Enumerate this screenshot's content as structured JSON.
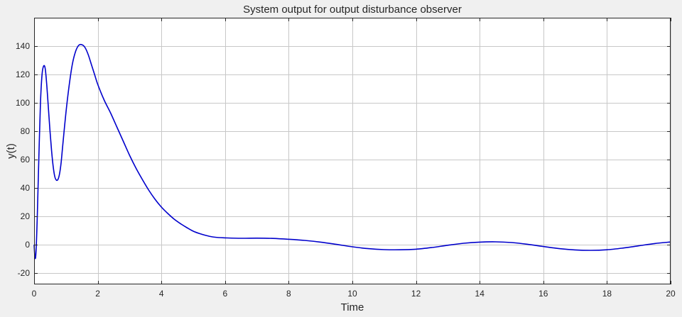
{
  "chart_data": {
    "type": "line",
    "title": "System output for output disturbance observer",
    "xlabel": "Time",
    "ylabel": "y(t)",
    "xlim": [
      0,
      20
    ],
    "ylim": [
      -28,
      160
    ],
    "xticks": [
      0,
      2,
      4,
      6,
      8,
      10,
      12,
      14,
      16,
      18,
      20
    ],
    "yticks": [
      -20,
      0,
      20,
      40,
      60,
      80,
      100,
      120,
      140
    ],
    "grid": true,
    "line_color": "#0000cc",
    "series": [
      {
        "x": [
          0,
          0.03,
          0.06,
          0.1,
          0.15,
          0.2,
          0.25,
          0.3,
          0.35,
          0.4,
          0.45,
          0.5,
          0.55,
          0.6,
          0.65,
          0.7,
          0.75,
          0.8,
          0.85,
          0.9,
          1.0,
          1.1,
          1.2,
          1.3,
          1.4,
          1.5,
          1.6,
          1.7,
          1.8,
          1.9,
          2.0,
          2.2,
          2.4,
          2.6,
          2.8,
          3.0,
          3.2,
          3.4,
          3.6,
          3.8,
          4.0,
          4.2,
          4.4,
          4.6,
          4.8,
          5.0,
          5.2,
          5.4,
          5.6,
          5.8,
          6.0,
          6.5,
          7.0,
          7.5,
          8.0,
          8.5,
          9.0,
          9.5,
          10.0,
          10.5,
          11.0,
          11.5,
          12.0,
          12.5,
          13.0,
          13.5,
          14.0,
          14.5,
          15.0,
          15.5,
          16.0,
          16.5,
          17.0,
          17.5,
          18.0,
          18.5,
          19.0,
          19.5,
          20.0
        ],
        "y": [
          0,
          -9.5,
          -5,
          20,
          62,
          100,
          120,
          126,
          124,
          112,
          96,
          80,
          66,
          55,
          48,
          45.5,
          46,
          50,
          58,
          70,
          93,
          112,
          127,
          136,
          140.5,
          141,
          139,
          134,
          127,
          120,
          113,
          102,
          93,
          83,
          73,
          63,
          54,
          46,
          38.5,
          32,
          26.5,
          22,
          18,
          14.8,
          12,
          9.5,
          7.8,
          6.5,
          5.5,
          5,
          4.8,
          4.5,
          4.6,
          4.4,
          3.8,
          3.0,
          1.8,
          0.2,
          -1.5,
          -2.8,
          -3.5,
          -3.6,
          -3.2,
          -2.0,
          -0.4,
          1.0,
          1.8,
          2.0,
          1.5,
          0.3,
          -1.3,
          -2.8,
          -3.7,
          -4.0,
          -3.6,
          -2.4,
          -0.8,
          0.8,
          1.9
        ]
      }
    ]
  }
}
